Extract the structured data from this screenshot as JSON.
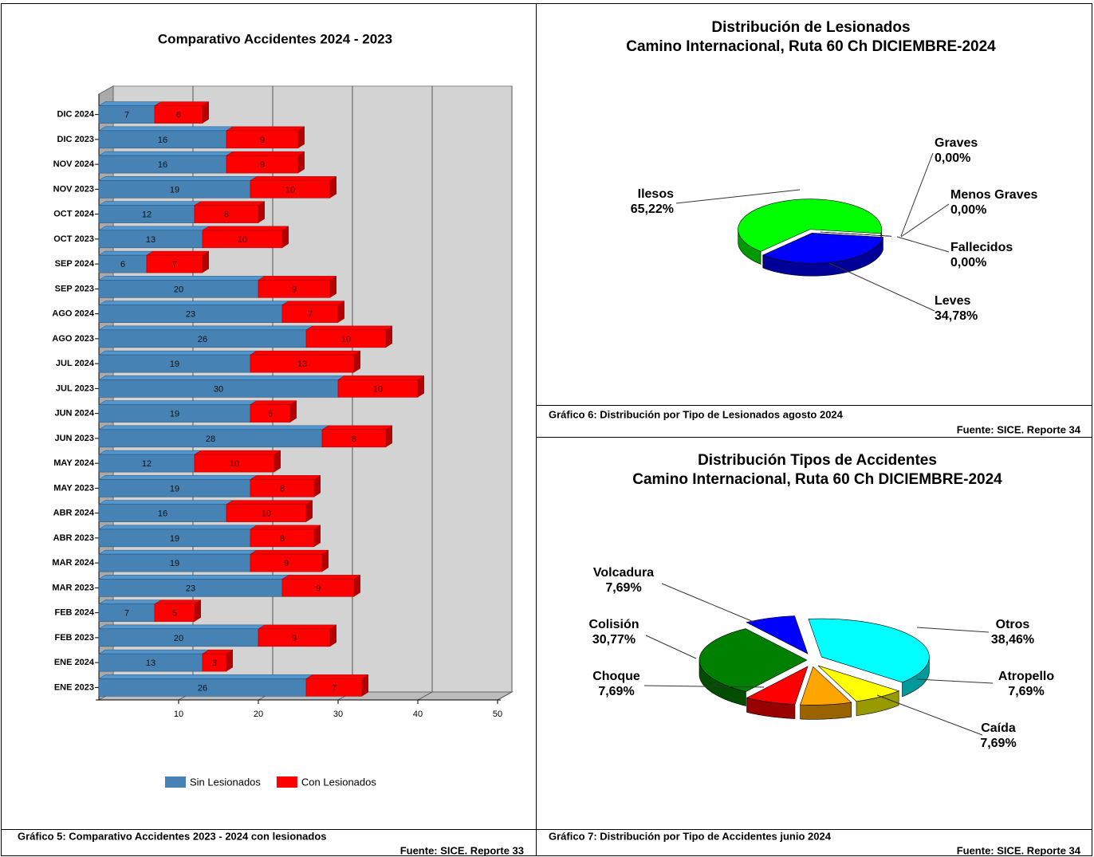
{
  "chart_data": [
    {
      "type": "bar",
      "title": "Comparativo Accidentes 2024 - 2023",
      "orientation": "horizontal",
      "stacked": true,
      "three_d": true,
      "categories": [
        "DIC 2024",
        "DIC 2023",
        "NOV 2024",
        "NOV 2023",
        "OCT 2024",
        "OCT 2023",
        "SEP 2024",
        "SEP 2023",
        "AGO 2024",
        "AGO 2023",
        "JUL 2024",
        "JUL 2023",
        "JUN 2024",
        "JUN 2023",
        "MAY 2024",
        "MAY 2023",
        "ABR 2024",
        "ABR 2023",
        "MAR 2024",
        "MAR 2023",
        "FEB 2024",
        "FEB 2023",
        "ENE 2024",
        "ENE 2023"
      ],
      "series": [
        {
          "name": "Sin Lesionados",
          "color": "#4682b4",
          "values": [
            7,
            16,
            16,
            19,
            12,
            13,
            6,
            20,
            23,
            26,
            19,
            30,
            19,
            28,
            12,
            19,
            16,
            19,
            19,
            23,
            7,
            20,
            13,
            26
          ]
        },
        {
          "name": "Con Lesionados",
          "color": "#ff0000",
          "values": [
            6,
            9,
            9,
            10,
            8,
            10,
            7,
            9,
            7,
            10,
            13,
            10,
            5,
            8,
            10,
            8,
            10,
            8,
            9,
            9,
            5,
            9,
            3,
            7
          ]
        }
      ],
      "xlim": [
        0,
        50
      ],
      "xticks": [
        10,
        20,
        30,
        40,
        50
      ],
      "grid": true,
      "legend": "bottom"
    },
    {
      "type": "pie",
      "three_d": true,
      "title": "Distribución de Lesionados",
      "subtitle": "Camino Internacional, Ruta 60 Ch DICIEMBRE-2024",
      "categories": [
        "Leves",
        "Ilesos",
        "Graves",
        "Menos Graves",
        "Fallecidos"
      ],
      "values": [
        34.78,
        65.22,
        0,
        0,
        0
      ],
      "value_labels": [
        "34,78%",
        "65,22%",
        "0,00%",
        "0,00%",
        "0,00%"
      ],
      "colors": [
        "#0000ff",
        "#00ff00",
        "#ff00ff",
        "#ff8000",
        "#e0c000"
      ]
    },
    {
      "type": "pie",
      "three_d": true,
      "title": "Distribución Tipos de Accidentes",
      "subtitle": "Camino Internacional, Ruta 60 Ch DICIEMBRE-2024",
      "categories": [
        "Otros",
        "Atropello",
        "Caída",
        "Choque",
        "Colisión",
        "Volcadura"
      ],
      "values": [
        38.46,
        7.69,
        7.69,
        7.69,
        30.77,
        7.69
      ],
      "value_labels": [
        "38,46%",
        "7,69%",
        "7,69%",
        "7,69%",
        "30,77%",
        "7,69%"
      ],
      "colors": [
        "#00ffff",
        "#ffff00",
        "#ffa500",
        "#ff0000",
        "#008000",
        "#0000ff"
      ]
    }
  ],
  "captions": [
    {
      "caption": "Gráfico 5: Comparativo Accidentes 2023 - 2024 con lesionados",
      "source": "Fuente: SICE. Reporte 33"
    },
    {
      "caption": "Gráfico 6: Distribución por Tipo de Lesionados agosto 2024",
      "source": "Fuente: SICE. Reporte 34"
    },
    {
      "caption": "Gráfico 7: Distribución por Tipo de Accidentes junio 2024",
      "source": "Fuente: SICE. Reporte 34"
    }
  ]
}
